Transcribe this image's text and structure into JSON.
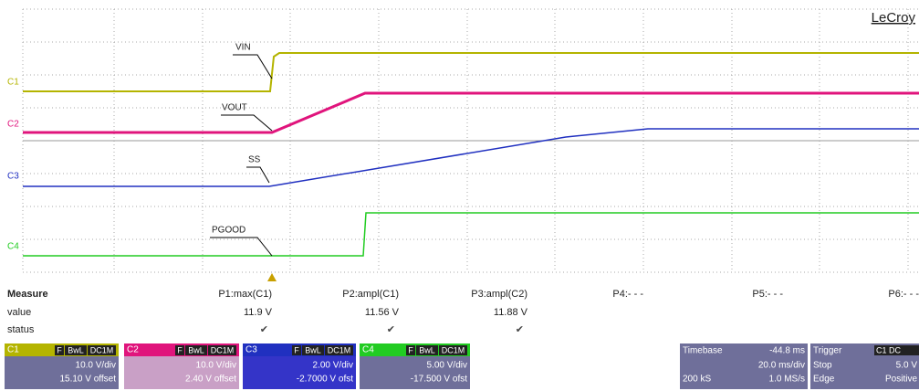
{
  "scope": {
    "brand": "LeCroy",
    "channel_labels": [
      "C1",
      "C2",
      "C3",
      "C4"
    ],
    "annotations": [
      "VIN",
      "VOUT",
      "SS",
      "PGOOD"
    ]
  },
  "measure": {
    "title": "Measure",
    "row_labels": [
      "value",
      "status"
    ],
    "params": [
      {
        "name": "P1:max(C1)",
        "value": "11.9 V",
        "status": "✔"
      },
      {
        "name": "P2:ampl(C1)",
        "value": "11.56 V",
        "status": "✔"
      },
      {
        "name": "P3:ampl(C2)",
        "value": "11.88 V",
        "status": "✔"
      },
      {
        "name": "P4:- - -"
      },
      {
        "name": "P5:- - -"
      },
      {
        "name": "P6:- - -"
      }
    ]
  },
  "channels": [
    {
      "name": "C1",
      "badges": [
        "F",
        "BwL",
        "DC1M"
      ],
      "scale": "10.0 V/div",
      "offset": "15.10 V offset"
    },
    {
      "name": "C2",
      "badges": [
        "F",
        "BwL",
        "DC1M"
      ],
      "scale": "10.0 V/div",
      "offset": "2.40 V offset"
    },
    {
      "name": "C3",
      "badges": [
        "F",
        "BwL",
        "DC1M"
      ],
      "scale": "2.00 V/div",
      "offset": "-2.7000 V ofst"
    },
    {
      "name": "C4",
      "badges": [
        "F",
        "BwL",
        "DC1M"
      ],
      "scale": "5.00 V/div",
      "offset": "-17.500 V ofst"
    }
  ],
  "timebase": {
    "title": "Timebase",
    "delay": "-44.8 ms",
    "scale": "20.0 ms/div",
    "samples": "200 kS",
    "rate": "1.0 MS/s"
  },
  "trigger": {
    "title": "Trigger",
    "source": "C1 DC",
    "level": "5.0 V",
    "mode": "Stop",
    "type": "Edge",
    "slope": "Positive"
  }
}
